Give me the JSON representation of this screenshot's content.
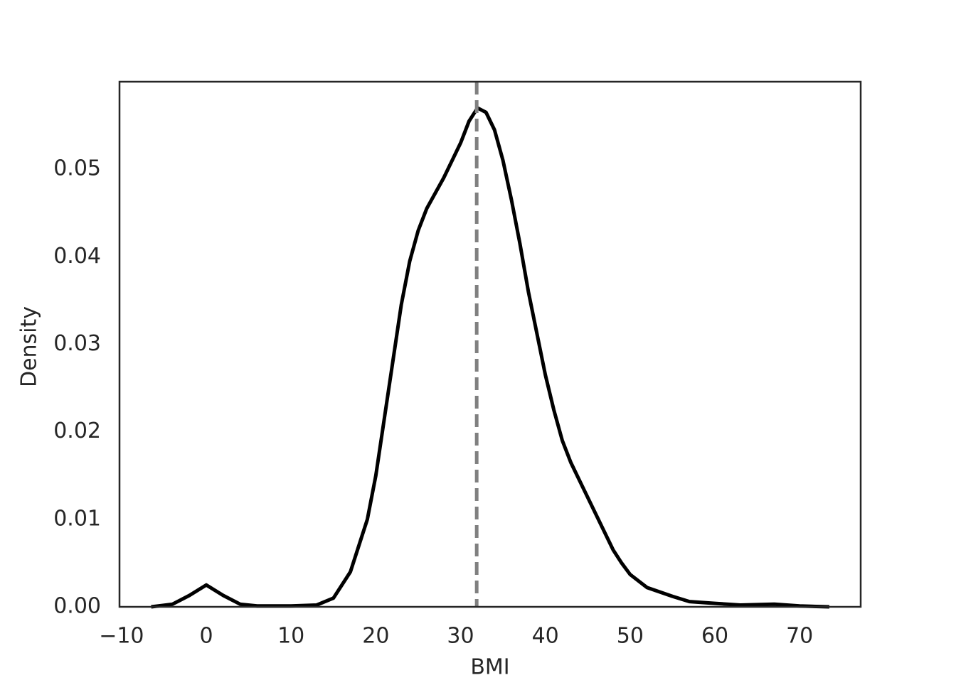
{
  "chart_data": {
    "type": "line",
    "x_label": "BMI",
    "y_label": "Density",
    "x": [
      -6.5,
      -4,
      -2,
      0,
      2,
      4,
      6,
      10,
      13,
      15,
      17,
      19,
      20,
      21,
      22,
      23,
      24,
      25,
      26,
      28,
      30,
      31,
      32,
      33,
      34,
      35,
      36,
      37,
      38,
      40,
      41,
      42,
      43,
      44,
      45,
      46,
      47,
      48,
      49,
      50,
      52,
      55,
      57,
      60,
      63,
      67,
      70,
      73.5
    ],
    "series": [
      {
        "color": "#000000",
        "values": [
          0.0,
          0.0003,
          0.0013,
          0.0025,
          0.0013,
          0.0003,
          0.0001,
          0.0001,
          0.0002,
          0.001,
          0.004,
          0.01,
          0.015,
          0.0215,
          0.028,
          0.0345,
          0.0395,
          0.043,
          0.0455,
          0.049,
          0.053,
          0.0555,
          0.057,
          0.0565,
          0.0545,
          0.051,
          0.0465,
          0.0415,
          0.036,
          0.0265,
          0.0225,
          0.019,
          0.0165,
          0.0145,
          0.0125,
          0.0105,
          0.0085,
          0.0065,
          0.005,
          0.0037,
          0.0022,
          0.0012,
          0.0006,
          0.0004,
          0.0002,
          0.0003,
          0.0001,
          0.0
        ]
      }
    ],
    "mean_line": {
      "x": 31.9,
      "color": "#808080"
    },
    "xlim": [
      -10.24,
      77.2
    ],
    "ylim": [
      0,
      0.06
    ],
    "xticks": [
      {
        "value": -10,
        "label": "−10"
      },
      0,
      10,
      20,
      30,
      40,
      50,
      60,
      70
    ],
    "yticks": [
      {
        "value": 0,
        "label": "0.00"
      },
      0.01,
      0.02,
      0.03,
      0.04,
      0.05
    ],
    "grid": false
  }
}
